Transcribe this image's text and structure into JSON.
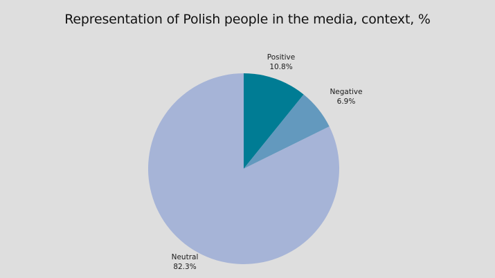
{
  "chart_data": {
    "type": "pie",
    "title": "Representation of Polish people in the media, context, %",
    "slices": [
      {
        "label": "Positive",
        "value": 10.8,
        "value_label": "10.8%",
        "color": "#007c94"
      },
      {
        "label": "Negative",
        "value": 6.9,
        "value_label": "6.9%",
        "color": "#6399be"
      },
      {
        "label": "Neutral",
        "value": 82.3,
        "value_label": "82.3%",
        "color": "#a6b4d7"
      }
    ],
    "start": "12 o'clock",
    "direction": "clockwise",
    "legend": "none",
    "labels": "outside"
  }
}
